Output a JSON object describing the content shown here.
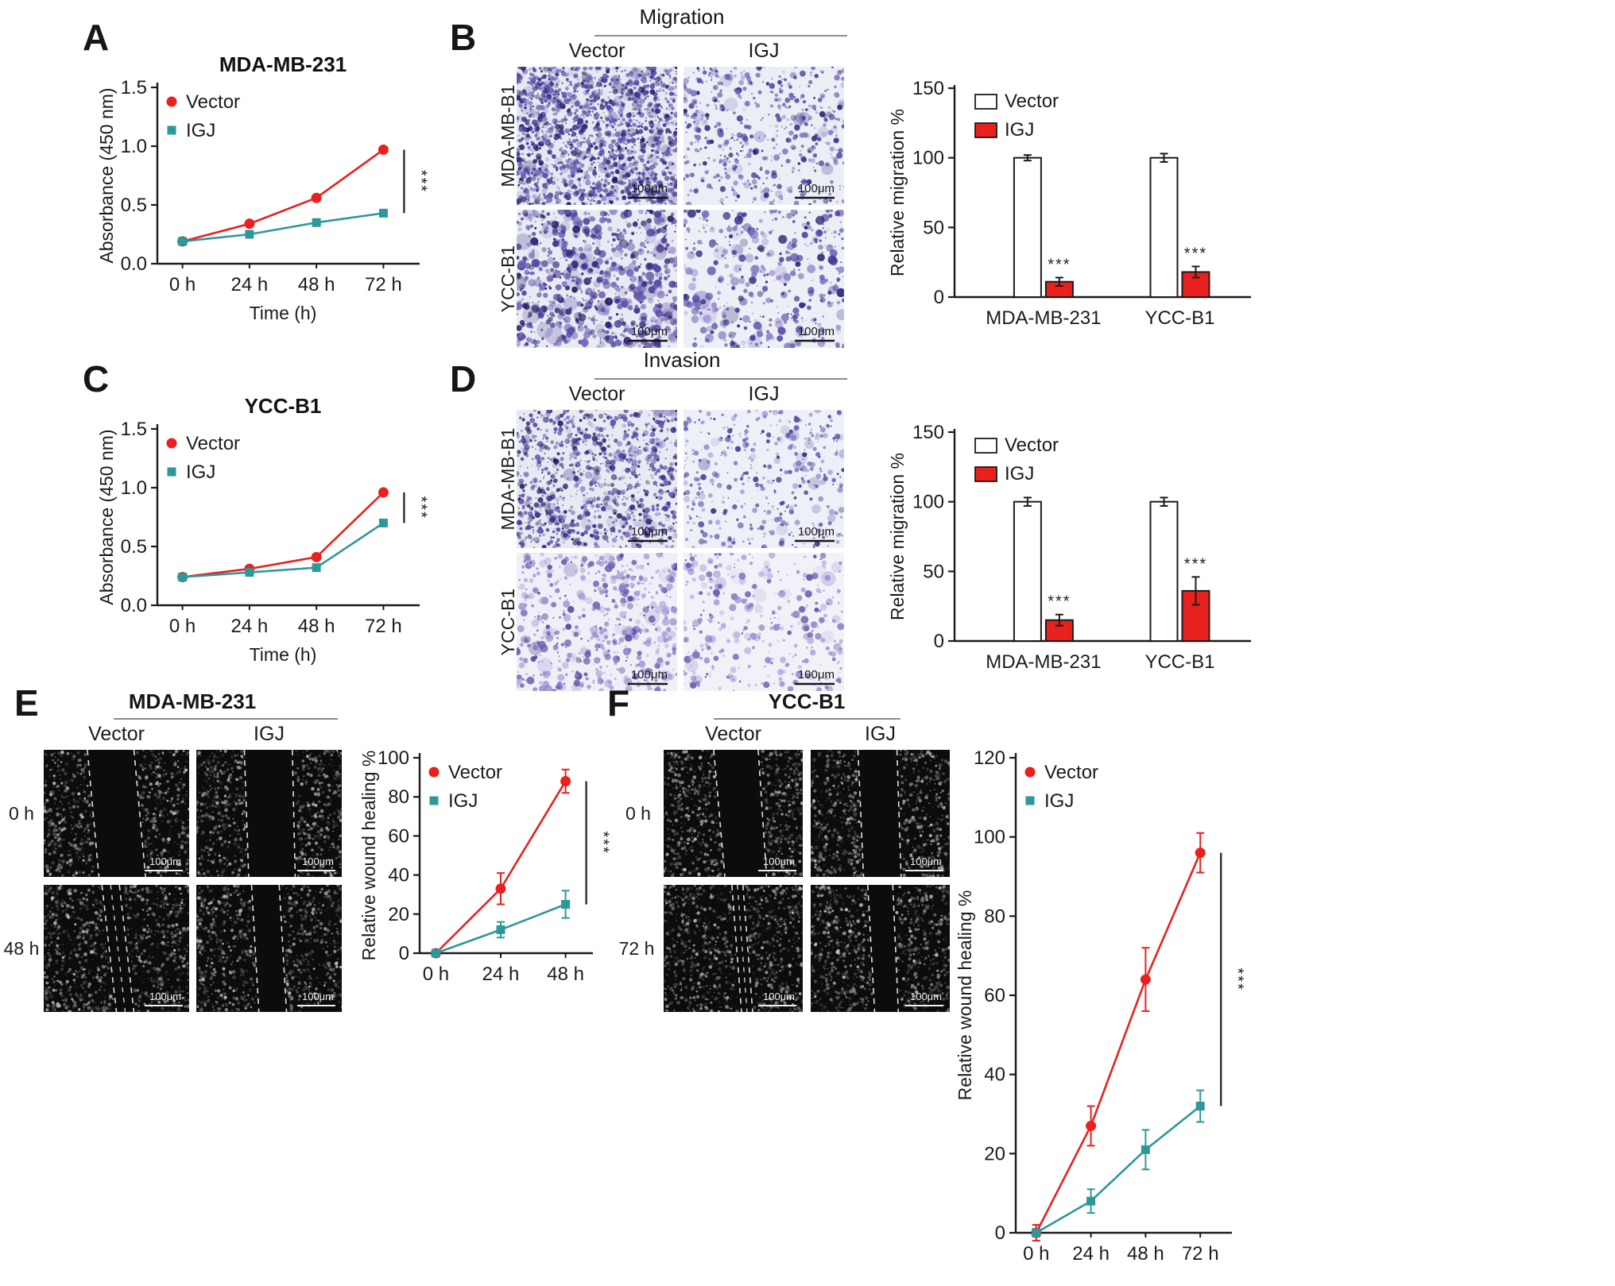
{
  "colors": {
    "vector": "#e8201e",
    "igj": "#2e979b",
    "axis": "#1b1b1b",
    "header_line": "#8c8c8c"
  },
  "panels": {
    "a": {
      "label": "A"
    },
    "b": {
      "label": "B",
      "header": "Migration",
      "columns": [
        "Vector",
        "IGJ"
      ],
      "rows": [
        "MDA-MB-B1",
        "YCC-B1"
      ],
      "scale_bar": "100μm"
    },
    "c": {
      "label": "C"
    },
    "d": {
      "label": "D",
      "header": "Invasion",
      "columns": [
        "Vector",
        "IGJ"
      ],
      "rows": [
        "MDA-MB-B1",
        "YCC-B1"
      ],
      "scale_bar": "100μm"
    },
    "e": {
      "label": "E",
      "header": "MDA-MB-231",
      "columns": [
        "Vector",
        "IGJ"
      ],
      "rows": [
        "0 h",
        "48 h"
      ],
      "scale_bar": "100μm"
    },
    "f": {
      "label": "F",
      "header": "YCC-B1",
      "columns": [
        "Vector",
        "IGJ"
      ],
      "rows": [
        "0 h",
        "72 h"
      ],
      "scale_bar": "100μm"
    }
  },
  "chart_data": [
    {
      "id": "chart-a",
      "type": "line",
      "title": "MDA-MB-231",
      "xlabel": "Time (h)",
      "ylabel": "Absorbance (450 nm)",
      "ylim": [
        0,
        1.5
      ],
      "yticks": [
        0,
        0.5,
        1,
        1.5
      ],
      "ytick_labels": [
        "0.0",
        "0.5",
        "1.0",
        "1.5"
      ],
      "x": [
        "0 h",
        "24 h",
        "48 h",
        "72 h"
      ],
      "grid": false,
      "legend": "top-left",
      "significance": "***",
      "series": [
        {
          "name": "Vector",
          "color": "#e8201e",
          "marker": "circle",
          "values": [
            0.19,
            0.34,
            0.56,
            0.97
          ]
        },
        {
          "name": "IGJ",
          "color": "#2e979b",
          "marker": "square",
          "values": [
            0.19,
            0.25,
            0.35,
            0.43
          ]
        }
      ]
    },
    {
      "id": "chart-b",
      "type": "bar",
      "ylabel": "Relative migration %",
      "ylim": [
        0,
        150
      ],
      "yticks": [
        0,
        50,
        100,
        150
      ],
      "categories": [
        "MDA-MB-231",
        "YCC-B1"
      ],
      "grid": false,
      "legend": "top-left",
      "series": [
        {
          "name": "Vector",
          "fill": "#ffffff",
          "values": [
            100,
            100
          ],
          "errors": [
            2,
            3
          ]
        },
        {
          "name": "IGJ",
          "fill": "#e8201e",
          "values": [
            11,
            18
          ],
          "errors": [
            3,
            4
          ],
          "sig": [
            "***",
            "***"
          ]
        }
      ]
    },
    {
      "id": "chart-c",
      "type": "line",
      "title": "YCC-B1",
      "xlabel": "Time (h)",
      "ylabel": "Absorbance (450 nm)",
      "ylim": [
        0,
        1.5
      ],
      "yticks": [
        0,
        0.5,
        1,
        1.5
      ],
      "ytick_labels": [
        "0.0",
        "0.5",
        "1.0",
        "1.5"
      ],
      "x": [
        "0 h",
        "24 h",
        "48 h",
        "72 h"
      ],
      "grid": false,
      "legend": "top-left",
      "significance": "***",
      "series": [
        {
          "name": "Vector",
          "color": "#e8201e",
          "marker": "circle",
          "values": [
            0.24,
            0.31,
            0.41,
            0.96
          ]
        },
        {
          "name": "IGJ",
          "color": "#2e979b",
          "marker": "square",
          "values": [
            0.24,
            0.28,
            0.32,
            0.7
          ]
        }
      ]
    },
    {
      "id": "chart-d",
      "type": "bar",
      "ylabel": "Relative migration %",
      "ylim": [
        0,
        150
      ],
      "yticks": [
        0,
        50,
        100,
        150
      ],
      "categories": [
        "MDA-MB-231",
        "YCC-B1"
      ],
      "grid": false,
      "legend": "top-left",
      "series": [
        {
          "name": "Vector",
          "fill": "#ffffff",
          "values": [
            100,
            100
          ],
          "errors": [
            3,
            3
          ]
        },
        {
          "name": "IGJ",
          "fill": "#e8201e",
          "values": [
            15,
            36
          ],
          "errors": [
            4,
            10
          ],
          "sig": [
            "***",
            "***"
          ]
        }
      ]
    },
    {
      "id": "chart-e",
      "type": "line",
      "ylabel": "Relative wound healing %",
      "ylim": [
        0,
        100
      ],
      "yticks": [
        0,
        20,
        40,
        60,
        80,
        100
      ],
      "x": [
        "0 h",
        "24 h",
        "48 h"
      ],
      "grid": false,
      "legend": "top-left",
      "significance": "***",
      "series": [
        {
          "name": "Vector",
          "color": "#e8201e",
          "marker": "circle",
          "values": [
            0,
            33,
            88
          ],
          "errors": [
            1,
            8,
            6
          ]
        },
        {
          "name": "IGJ",
          "color": "#2e979b",
          "marker": "square",
          "values": [
            0,
            12,
            25
          ],
          "errors": [
            1,
            4,
            7
          ]
        }
      ]
    },
    {
      "id": "chart-f",
      "type": "line",
      "ylabel": "Relative wound healing %",
      "ylim": [
        0,
        120
      ],
      "yticks": [
        0,
        20,
        40,
        60,
        80,
        100,
        120
      ],
      "x": [
        "0 h",
        "24 h",
        "48 h",
        "72 h"
      ],
      "grid": false,
      "legend": "top-left",
      "significance": "***",
      "series": [
        {
          "name": "Vector",
          "color": "#e8201e",
          "marker": "circle",
          "values": [
            0,
            27,
            64,
            96
          ],
          "errors": [
            2,
            5,
            8,
            5
          ]
        },
        {
          "name": "IGJ",
          "color": "#2e979b",
          "marker": "square",
          "values": [
            0,
            8,
            21,
            32
          ],
          "errors": [
            1,
            3,
            5,
            4
          ]
        }
      ]
    }
  ],
  "images": {
    "cells": {
      "b0": {
        "seed": 11,
        "n": 1700,
        "rmax": 3.0,
        "bg": "#e6e8f2",
        "palette": [
          "#342c86",
          "#4b3f9f",
          "#6a5eb5",
          "#241f66"
        ]
      },
      "b1": {
        "seed": 12,
        "n": 520,
        "rmax": 3.2,
        "bg": "#eceef6",
        "palette": [
          "#3b3190",
          "#574ba8",
          "#7568bd",
          "#2a2373"
        ]
      },
      "b2": {
        "seed": 13,
        "n": 850,
        "rmax": 4.6,
        "bg": "#e9ebf4",
        "palette": [
          "#382e8c",
          "#5246a3",
          "#6f63b8",
          "#272066"
        ]
      },
      "b3": {
        "seed": 14,
        "n": 430,
        "rmax": 4.8,
        "bg": "#edeff6",
        "palette": [
          "#41369a",
          "#5d51ad",
          "#7b6fc2",
          "#2e2778"
        ]
      },
      "d0": {
        "seed": 15,
        "n": 1050,
        "rmax": 3.0,
        "bg": "#e8eaf3",
        "palette": [
          "#372d8a",
          "#5145a2",
          "#6e62b7",
          "#262061"
        ]
      },
      "d1": {
        "seed": 16,
        "n": 400,
        "rmax": 3.0,
        "bg": "#eef0f7",
        "palette": [
          "#4a3f9e",
          "#675bb2",
          "#8479c6",
          "#362e85"
        ]
      },
      "d2": {
        "seed": 17,
        "n": 560,
        "rmax": 4.2,
        "bg": "#efeff7",
        "palette": [
          "#6c60b6",
          "#8a7fca",
          "#a59cd8",
          "#554a9e"
        ]
      },
      "d3": {
        "seed": 18,
        "n": 340,
        "rmax": 4.0,
        "bg": "#f1f1f8",
        "palette": [
          "#7569bd",
          "#958bcf",
          "#aea6dc",
          "#5e53a6"
        ]
      }
    },
    "wounds": {
      "e0": {
        "seed": 21,
        "t": [
          0.3,
          0.62
        ],
        "b": [
          0.38,
          0.7
        ]
      },
      "e1": {
        "seed": 22,
        "t": [
          0.33,
          0.66
        ],
        "b": [
          0.36,
          0.68
        ]
      },
      "e2": {
        "seed": 23,
        "t": [
          0.4,
          0.52
        ],
        "b": [
          0.5,
          0.62
        ],
        "mid": true
      },
      "e3": {
        "seed": 24,
        "t": [
          0.38,
          0.57
        ],
        "b": [
          0.43,
          0.62
        ]
      },
      "f0": {
        "seed": 25,
        "t": [
          0.36,
          0.68
        ],
        "b": [
          0.44,
          0.74
        ]
      },
      "f1": {
        "seed": 26,
        "t": [
          0.34,
          0.62
        ],
        "b": [
          0.38,
          0.65
        ]
      },
      "f2": {
        "seed": 27,
        "t": [
          0.49,
          0.57
        ],
        "b": [
          0.56,
          0.64
        ],
        "mid": true
      },
      "f3": {
        "seed": 28,
        "t": [
          0.41,
          0.59
        ],
        "b": [
          0.46,
          0.63
        ]
      }
    }
  }
}
